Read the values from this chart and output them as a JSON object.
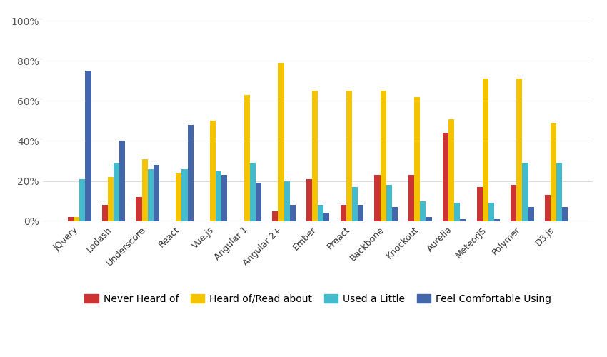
{
  "categories": [
    "jQuery",
    "Lodash",
    "Underscore",
    "React",
    "Vue.js",
    "Angular 1",
    "Angular 2+",
    "Ember",
    "Preact",
    "Backbone",
    "Knockout",
    "Aurelia",
    "MeteorJS",
    "Polymer",
    "D3.js"
  ],
  "series": {
    "Never Heard of": [
      2,
      8,
      12,
      0,
      0,
      0,
      5,
      21,
      8,
      23,
      23,
      44,
      17,
      18,
      13
    ],
    "Heard of/Read about": [
      2,
      22,
      31,
      24,
      50,
      63,
      79,
      65,
      65,
      65,
      62,
      51,
      71,
      71,
      49
    ],
    "Used a Little": [
      21,
      29,
      26,
      26,
      25,
      29,
      20,
      8,
      17,
      18,
      10,
      9,
      9,
      29,
      29
    ],
    "Feel Comfortable Using": [
      75,
      40,
      28,
      48,
      23,
      19,
      8,
      4,
      8,
      7,
      2,
      1,
      1,
      7,
      7
    ]
  },
  "series_colors": {
    "Never Heard of": "#cc3333",
    "Heard of/Read about": "#f5c400",
    "Used a Little": "#44bbcc",
    "Feel Comfortable Using": "#4466aa"
  },
  "ylim": [
    0,
    105
  ],
  "yticks": [
    0,
    20,
    40,
    60,
    80,
    100
  ],
  "ytick_labels": [
    "0%",
    "20%",
    "40%",
    "60%",
    "80%",
    "100%"
  ],
  "background_color": "#ffffff",
  "grid_color": "#dddddd",
  "bar_width": 0.17,
  "figsize": [
    8.5,
    5.0
  ],
  "dpi": 100
}
